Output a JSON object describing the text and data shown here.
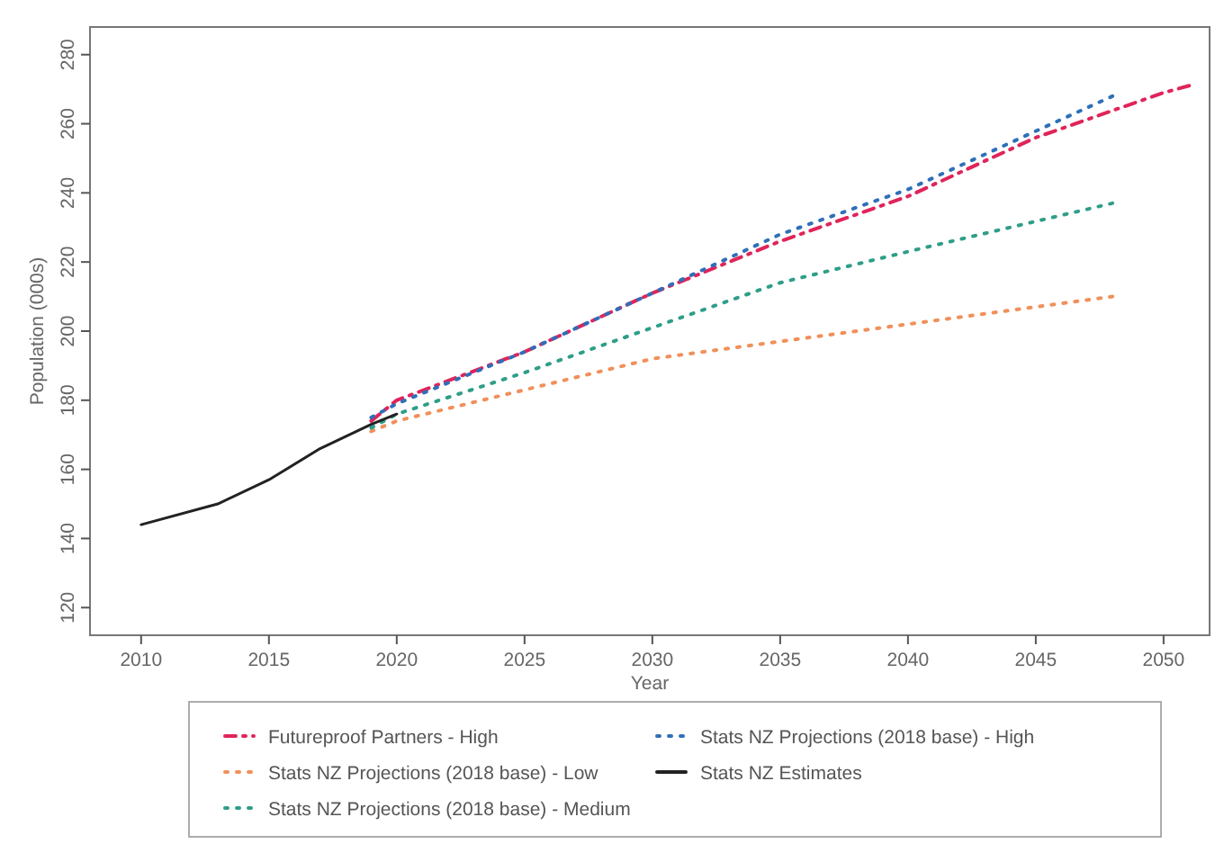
{
  "chart_data": {
    "type": "line",
    "xlabel": "Year",
    "ylabel": "Population (000s)",
    "xlim": [
      2008,
      2051.8
    ],
    "ylim": [
      112,
      288
    ],
    "xticks": [
      2010,
      2015,
      2020,
      2025,
      2030,
      2035,
      2040,
      2045,
      2050
    ],
    "yticks": [
      120,
      140,
      160,
      180,
      200,
      220,
      240,
      260,
      280
    ],
    "grid": false,
    "legend": "bottom",
    "marker": "none",
    "series": [
      {
        "name": "Futureproof Partners - High",
        "color": "#e0245a",
        "line_style": "dashed",
        "x": [
          2019,
          2020,
          2025,
          2030,
          2035,
          2040,
          2045,
          2050,
          2051
        ],
        "values": [
          174,
          180,
          194,
          211,
          226,
          239,
          256,
          269,
          271
        ]
      },
      {
        "name": "Stats NZ Projections (2018 base) - Low",
        "color": "#f0905a",
        "line_style": "dotted",
        "x": [
          2019,
          2020,
          2025,
          2030,
          2035,
          2040,
          2048
        ],
        "values": [
          171,
          174,
          183,
          192,
          197,
          202,
          210
        ]
      },
      {
        "name": "Stats NZ Projections (2018 base) - Medium",
        "color": "#2e9e88",
        "line_style": "dotted",
        "x": [
          2019,
          2020,
          2025,
          2030,
          2035,
          2040,
          2048
        ],
        "values": [
          172,
          176,
          188,
          201,
          214,
          223,
          237
        ]
      },
      {
        "name": "Stats NZ Projections (2018 base) - High",
        "color": "#2f6fb8",
        "line_style": "dotted",
        "x": [
          2019,
          2020,
          2025,
          2030,
          2035,
          2040,
          2048
        ],
        "values": [
          175,
          179,
          194,
          211,
          228,
          241,
          268
        ]
      },
      {
        "name": "Stats NZ Estimates",
        "color": "#222222",
        "line_style": "solid",
        "x": [
          2010,
          2013,
          2015,
          2017,
          2019,
          2020
        ],
        "values": [
          144,
          150,
          157,
          166,
          173,
          176
        ]
      }
    ]
  }
}
